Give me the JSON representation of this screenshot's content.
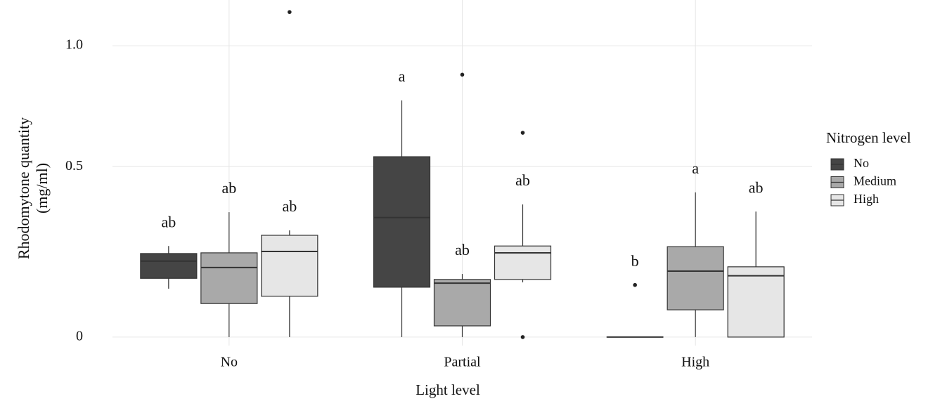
{
  "chart_data": {
    "type": "box",
    "x_label": "Light level",
    "y_label": [
      "Rhodomytone quantity",
      "(mg/ml)"
    ],
    "legend_title": "Nitrogen level",
    "legend_position": "right",
    "y_scale": "log1p",
    "ylim": [
      -0.02,
      1.23
    ],
    "yticks": [
      0,
      0.5,
      {
        "value": 1,
        "label": "1.0"
      }
    ],
    "grid": true,
    "categories": [
      "No",
      "Partial",
      "High"
    ],
    "series": [
      {
        "name": "No",
        "color": "#454545",
        "values": [
          {
            "min": 0.122,
            "q1": 0.15,
            "median": 0.198,
            "q3": 0.22,
            "max": 0.242,
            "outliers": []
          },
          {
            "min": 0,
            "q1": 0.126,
            "median": 0.329,
            "q3": 0.536,
            "max": 0.756,
            "outliers": []
          },
          {
            "min": 0,
            "q1": 0,
            "median": 0,
            "q3": 0,
            "max": 0,
            "outliers": [
              0.132
            ]
          }
        ],
        "letters": [
          "ab",
          "a",
          "b"
        ]
      },
      {
        "name": "Medium",
        "color": "#a9a9a9",
        "values": [
          {
            "min": 0,
            "q1": 0.083,
            "median": 0.18,
            "q3": 0.222,
            "max": 0.346,
            "outliers": []
          },
          {
            "min": 0,
            "q1": 0.027,
            "median": 0.137,
            "q3": 0.147,
            "max": 0.162,
            "outliers": [
              0.867
            ]
          },
          {
            "min": 0,
            "q1": 0.067,
            "median": 0.17,
            "q3": 0.24,
            "max": 0.411,
            "outliers": []
          }
        ],
        "letters": [
          "ab",
          "ab",
          "a"
        ]
      },
      {
        "name": "High",
        "color": "#e6e6e6",
        "values": [
          {
            "min": 0,
            "q1": 0.102,
            "median": 0.226,
            "q3": 0.274,
            "max": 0.289,
            "outliers": [
              1.167
            ]
          },
          {
            "min": 0.139,
            "q1": 0.147,
            "median": 0.222,
            "q3": 0.242,
            "max": 0.371,
            "outliers": [
              0.626,
              0
            ]
          },
          {
            "min": 0,
            "q1": 0,
            "median": 0.157,
            "q3": 0.182,
            "max": 0.348,
            "outliers": []
          }
        ],
        "letters": [
          "ab",
          "ab",
          "ab"
        ]
      }
    ]
  }
}
